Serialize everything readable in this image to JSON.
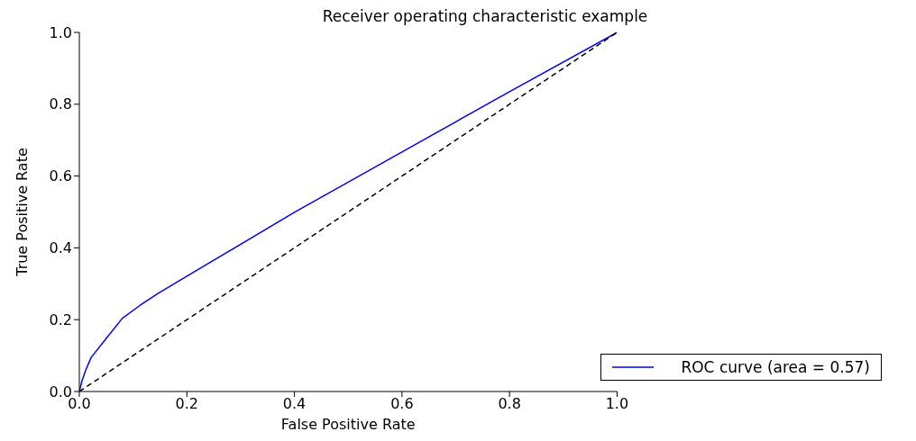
{
  "chart_data": {
    "type": "line",
    "title": "Receiver operating characteristic example",
    "xlabel": "False Positive Rate",
    "ylabel": "True Positive Rate",
    "xlim": [
      0,
      1
    ],
    "ylim": [
      0,
      1
    ],
    "xticks": [
      {
        "value": 0,
        "label": "0.0"
      },
      0.2,
      0.4,
      0.6,
      0.8,
      {
        "value": 1,
        "label": "1.0"
      }
    ],
    "yticks": [
      {
        "value": 0,
        "label": "0.0"
      },
      0.2,
      0.4,
      0.6,
      0.8,
      {
        "value": 1,
        "label": "1.0"
      }
    ],
    "grid": false,
    "legend": "bottom right",
    "marker": "none",
    "series": [
      {
        "name": "ROC curve (area = 0.57)",
        "color": "#0000ff",
        "line_style": "solid",
        "x": [
          0,
          0.005,
          0.012,
          0.022,
          0.048,
          0.08,
          0.113,
          0.146,
          0.2,
          0.245,
          0.4,
          0.6,
          0.8,
          1
        ],
        "values": [
          0,
          0.03,
          0.06,
          0.095,
          0.144,
          0.204,
          0.24,
          0.273,
          0.321,
          0.361,
          0.499,
          0.667,
          0.835,
          1
        ]
      },
      {
        "color": "#000000",
        "line_style": "dashed",
        "x": [
          0,
          1
        ],
        "values": [
          0,
          1
        ]
      }
    ]
  }
}
